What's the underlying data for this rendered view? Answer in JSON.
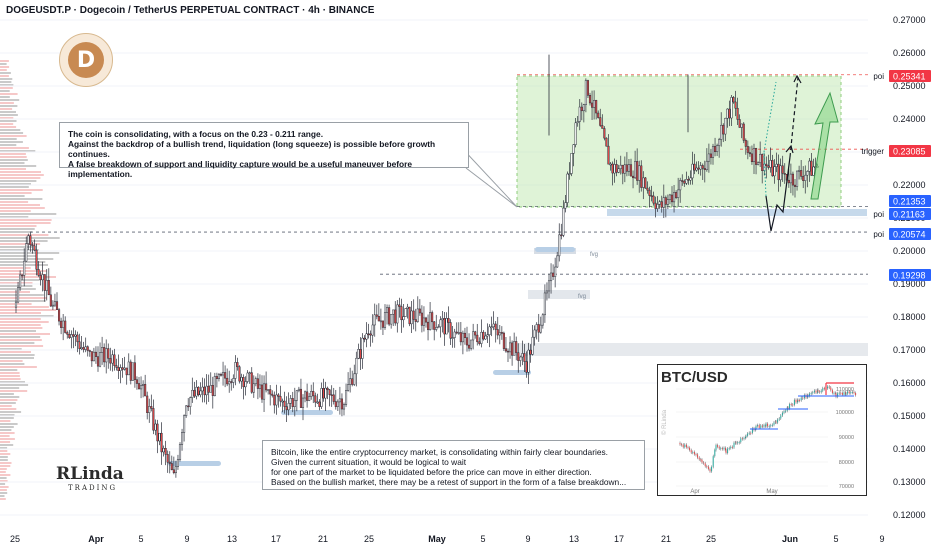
{
  "header": {
    "title": "DOGEUSDT.P · Dogecoin / TetherUS PERPETUAL CONTRACT · 4h · BINANCE"
  },
  "colors": {
    "bull": "#26a69a",
    "bear": "#ef5350",
    "candle_body": "#e05050",
    "zone": "#b7e4a7",
    "price_red": "#f23645",
    "price_blue": "#2962ff"
  },
  "chart_data": {
    "type": "candlestick",
    "title": "DOGEUSDT.P · Dogecoin / TetherUS PERPETUAL CONTRACT · 4h · BINANCE",
    "ylim": [
      0.117,
      0.278
    ],
    "y_ticks": [
      "0.27000",
      "0.26000",
      "0.25000",
      "0.24000",
      "0.23000",
      "0.22000",
      "0.21000",
      "0.20000",
      "0.19000",
      "0.18000",
      "0.17000",
      "0.16000",
      "0.15000",
      "0.14000",
      "0.13000",
      "0.12000"
    ],
    "x_ticks": [
      "25",
      "Apr",
      "5",
      "9",
      "13",
      "17",
      "21",
      "25",
      "May",
      "5",
      "9",
      "13",
      "17",
      "21",
      "25",
      "Jun",
      "5",
      "9"
    ],
    "price_path": [
      [
        "2025-03-25",
        0.183
      ],
      [
        "2025-03-26",
        0.205
      ],
      [
        "2025-03-28",
        0.183
      ],
      [
        "2025-03-31",
        0.168
      ],
      [
        "2025-04-02",
        0.168
      ],
      [
        "2025-04-04",
        0.162
      ],
      [
        "2025-04-06",
        0.14
      ],
      [
        "2025-04-07",
        0.131
      ],
      [
        "2025-04-08",
        0.155
      ],
      [
        "2025-04-10",
        0.158
      ],
      [
        "2025-04-12",
        0.164
      ],
      [
        "2025-04-14",
        0.158
      ],
      [
        "2025-04-16",
        0.154
      ],
      [
        "2025-04-18",
        0.156
      ],
      [
        "2025-04-21",
        0.155
      ],
      [
        "2025-04-23",
        0.177
      ],
      [
        "2025-04-25",
        0.181
      ],
      [
        "2025-04-27",
        0.18
      ],
      [
        "2025-04-29",
        0.178
      ],
      [
        "2025-05-01",
        0.172
      ],
      [
        "2025-05-03",
        0.177
      ],
      [
        "2025-05-05",
        0.17
      ],
      [
        "2025-05-06",
        0.166
      ],
      [
        "2025-05-08",
        0.19
      ],
      [
        "2025-05-09",
        0.21
      ],
      [
        "2025-05-10",
        0.238
      ],
      [
        "2025-05-11",
        0.25
      ],
      [
        "2025-05-13",
        0.225
      ],
      [
        "2025-05-15",
        0.225
      ],
      [
        "2025-05-17",
        0.213
      ],
      [
        "2025-05-19",
        0.221
      ],
      [
        "2025-05-21",
        0.228
      ],
      [
        "2025-05-23",
        0.245
      ],
      [
        "2025-05-24",
        0.232
      ],
      [
        "2025-05-26",
        0.225
      ],
      [
        "2025-05-28",
        0.222
      ],
      [
        "2025-05-30",
        0.226
      ]
    ],
    "zones": {
      "range_top": 0.25341,
      "range_bottom": 0.21353
    },
    "levels": [
      {
        "label": "poi",
        "price": "0.25341",
        "color": "#f23645"
      },
      {
        "label": "trigger",
        "price": "0.23085",
        "color": "#f23645"
      },
      {
        "label": "",
        "price": "0.21353",
        "color": "#2962ff"
      },
      {
        "label": "poi",
        "price": "0.21163",
        "color": "#2962ff"
      },
      {
        "label": "poi",
        "price": "0.20574",
        "color": "#2962ff"
      },
      {
        "label": "",
        "price": "0.19298",
        "color": "#2962ff"
      }
    ],
    "fvg_labels": [
      "fvg",
      "fvg"
    ],
    "inset": {
      "title": "BTC/USD",
      "y_ticks": [
        "110000",
        "100000",
        "90000",
        "80000",
        "70000"
      ],
      "x_ticks": [
        "Apr",
        "May"
      ],
      "watermark": "© RLinda"
    }
  },
  "notes": {
    "top": [
      "The coin is consolidating, with a focus on the 0.23 - 0.211 range.",
      "Against the backdrop of a bullish trend, liquidation (long squeeze) is possible before growth continues.",
      "A false breakdown of support and liquidity capture would be a useful maneuver before implementation."
    ],
    "bottom": [
      "Bitcoin, like the entire cryptocurrency market, is consolidating within fairly clear boundaries.",
      "Given the current situation, it would be logical to wait",
      "for one part of the market to be liquidated before the price can move in either direction.",
      "Based on the bullish market, there may be a retest of support in the form of a false breakdown..."
    ]
  },
  "logos": {
    "brand": "RLinda",
    "brand_sub": "TRADING"
  }
}
